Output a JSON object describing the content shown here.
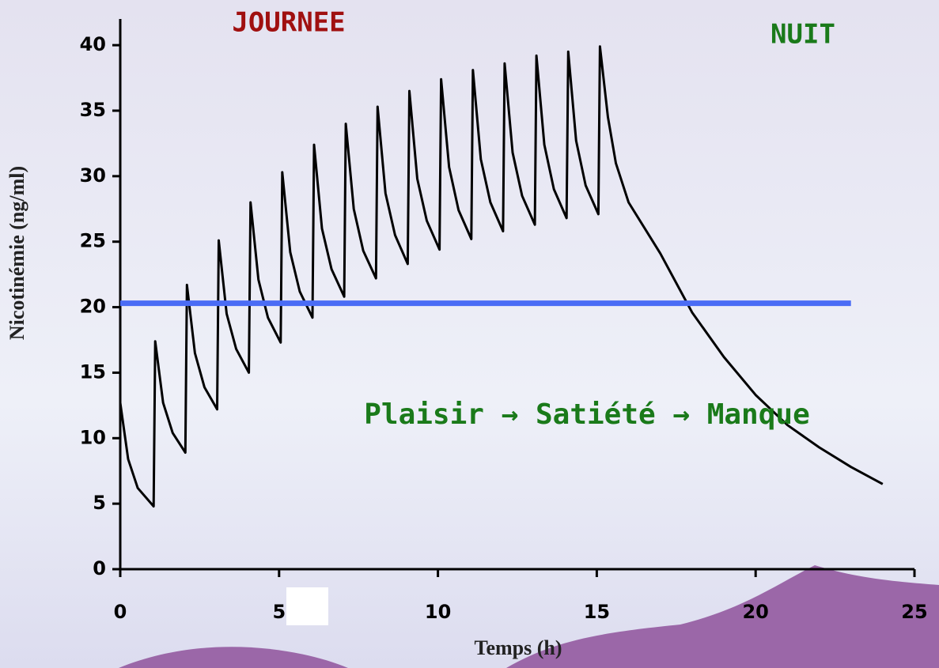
{
  "chart_data": {
    "type": "line",
    "x_label": "Temps (h)",
    "y_label": "Nicotinémie (ng/ml)",
    "xlim": [
      0,
      25
    ],
    "xticks": [
      0,
      5,
      10,
      15,
      20,
      25
    ],
    "ylim": [
      0,
      42
    ],
    "yticks": [
      0,
      5,
      10,
      15,
      20,
      25,
      30,
      35,
      40
    ],
    "series": [
      {
        "color": "#000000",
        "x": [
          0,
          0.25,
          0.55,
          1.05,
          1.1,
          1.35,
          1.65,
          2.05,
          2.1,
          2.35,
          2.65,
          3.05,
          3.1,
          3.35,
          3.65,
          4.05,
          4.1,
          4.35,
          4.65,
          5.05,
          5.1,
          5.35,
          5.65,
          6.05,
          6.1,
          6.35,
          6.65,
          7.05,
          7.1,
          7.35,
          7.65,
          8.05,
          8.1,
          8.35,
          8.65,
          9.05,
          9.1,
          9.35,
          9.65,
          10.05,
          10.1,
          10.35,
          10.65,
          11.05,
          11.1,
          11.35,
          11.65,
          12.05,
          12.1,
          12.35,
          12.65,
          13.05,
          13.1,
          13.35,
          13.65,
          14.05,
          14.1,
          14.35,
          14.65,
          15.05,
          15.1,
          15.35,
          15.6,
          16,
          17,
          18,
          19,
          20,
          21,
          22,
          23,
          24
        ],
        "values": [
          12.7,
          8.4,
          6.2,
          4.8,
          17.4,
          12.7,
          10.4,
          8.9,
          21.7,
          16.5,
          13.9,
          12.2,
          25.1,
          19.5,
          16.8,
          15,
          28,
          22.1,
          19.2,
          17.3,
          30.3,
          24.2,
          21.2,
          19.2,
          32.4,
          26,
          22.9,
          20.8,
          34,
          27.5,
          24.3,
          22.2,
          35.3,
          28.7,
          25.5,
          23.3,
          36.5,
          29.8,
          26.6,
          24.4,
          37.4,
          30.7,
          27.4,
          25.2,
          38.1,
          31.3,
          28,
          25.8,
          38.6,
          31.8,
          28.5,
          26.3,
          39.2,
          32.4,
          29,
          26.8,
          39.5,
          32.7,
          29.3,
          27.1,
          39.9,
          34.5,
          31,
          28,
          24.1,
          19.6,
          16.2,
          13.3,
          11,
          9.3,
          7.8,
          6.5
        ]
      },
      {
        "color": "#4a6cf5",
        "x": [
          0,
          23
        ],
        "values": [
          20.3,
          20.3
        ]
      }
    ],
    "annotations": [
      {
        "text": "JOURNEE",
        "color": "#a01010"
      },
      {
        "text": "NUIT",
        "color": "#1a7a1a"
      },
      {
        "text": "Plaisir → Satiété → Manque",
        "color": "#1a7a1a"
      }
    ]
  }
}
